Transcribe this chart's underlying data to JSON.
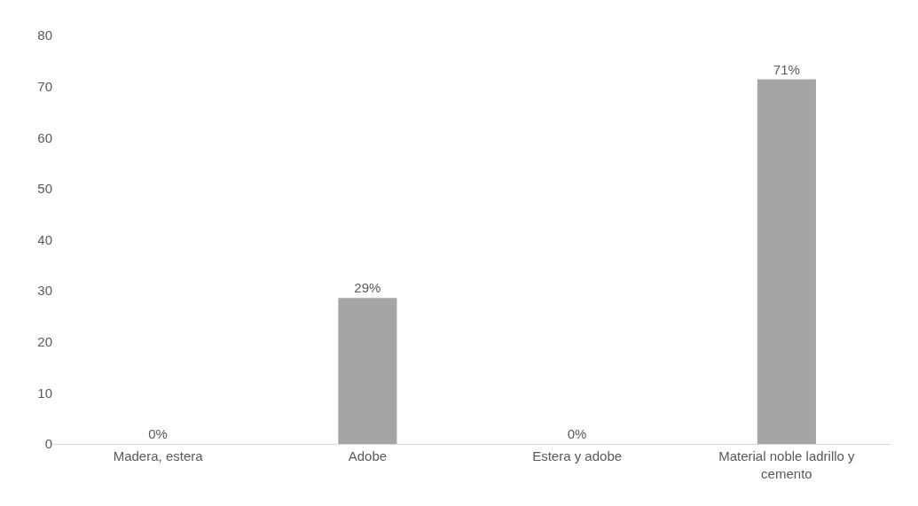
{
  "chart_data": {
    "type": "bar",
    "categories": [
      "Madera, estera",
      "Adobe",
      "Estera y adobe",
      "Material noble ladrillo y cemento"
    ],
    "values": [
      0,
      28.6,
      0,
      71.4
    ],
    "value_labels": [
      "0%",
      "29%",
      "0%",
      "71%"
    ],
    "color": "#a5a5a5",
    "ylim": [
      0,
      80
    ],
    "yticks": [
      0,
      10,
      20,
      30,
      40,
      50,
      60,
      70,
      80
    ],
    "grid": false,
    "legend": false
  }
}
